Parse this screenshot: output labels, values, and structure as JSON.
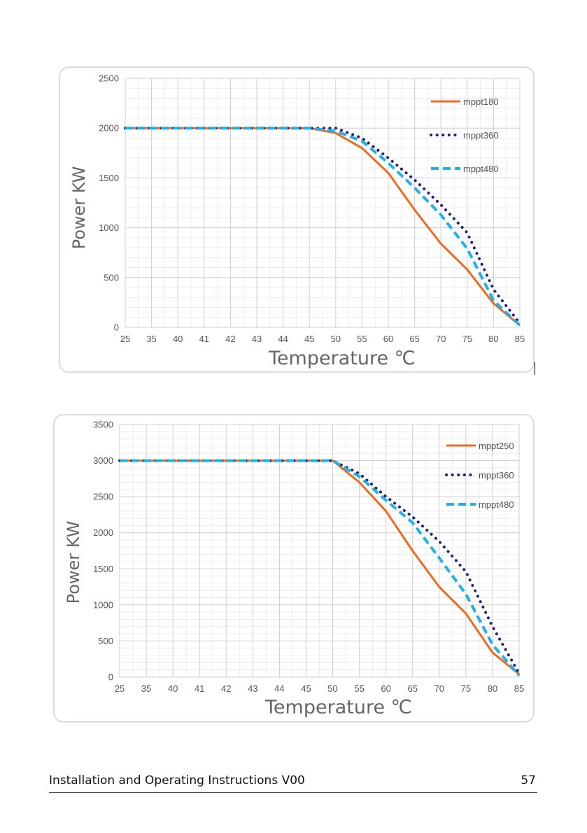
{
  "chart_data": [
    {
      "type": "line",
      "categories": [
        "25",
        "35",
        "40",
        "41",
        "42",
        "43",
        "44",
        "45",
        "50",
        "55",
        "60",
        "65",
        "70",
        "75",
        "80",
        "85"
      ],
      "ylim": [
        0,
        2500
      ],
      "yticks": [
        0,
        500,
        1000,
        1500,
        2000,
        2500
      ],
      "xlabel": "Temperature ℃",
      "ylabel": "Power  KW",
      "grid": true,
      "legend_position": "top-right",
      "series": [
        {
          "name": "mppt180",
          "style": "solid",
          "color": "#ee6a1c",
          "values": [
            2000,
            2000,
            2000,
            2000,
            2000,
            2000,
            2000,
            2000,
            1950,
            1800,
            1550,
            1180,
            840,
            580,
            240,
            20
          ]
        },
        {
          "name": "mppt360",
          "style": "dotted",
          "color": "#1f1f7a",
          "values": [
            2000,
            2000,
            2000,
            2000,
            2000,
            2000,
            2000,
            2000,
            2000,
            1900,
            1700,
            1480,
            1230,
            950,
            380,
            40
          ]
        },
        {
          "name": "mppt480",
          "style": "dashed",
          "color": "#22b0e8",
          "values": [
            2000,
            2000,
            2000,
            2000,
            2000,
            2000,
            2000,
            2000,
            1970,
            1870,
            1650,
            1400,
            1130,
            790,
            270,
            20
          ]
        }
      ]
    },
    {
      "type": "line",
      "categories": [
        "25",
        "35",
        "40",
        "41",
        "42",
        "43",
        "44",
        "45",
        "50",
        "55",
        "60",
        "65",
        "70",
        "75",
        "80",
        "85"
      ],
      "ylim": [
        0,
        3500
      ],
      "yticks": [
        0,
        500,
        1000,
        1500,
        2000,
        2500,
        3000,
        3500
      ],
      "xlabel": "Temperature ℃",
      "ylabel": "Power  KW",
      "grid": true,
      "legend_position": "top-right",
      "series": [
        {
          "name": "mppt250",
          "style": "solid",
          "color": "#ee6a1c",
          "values": [
            3000,
            3000,
            3000,
            3000,
            3000,
            3000,
            3000,
            3000,
            3000,
            2700,
            2300,
            1750,
            1250,
            880,
            340,
            40
          ]
        },
        {
          "name": "mppt360",
          "style": "dotted",
          "color": "#1f1f7a",
          "values": [
            3000,
            3000,
            3000,
            3000,
            3000,
            3000,
            3000,
            3000,
            3000,
            2820,
            2500,
            2220,
            1880,
            1460,
            700,
            50
          ]
        },
        {
          "name": "mppt480",
          "style": "dashed",
          "color": "#22b0e8",
          "values": [
            3000,
            3000,
            3000,
            3000,
            3000,
            3000,
            3000,
            3000,
            3000,
            2780,
            2450,
            2140,
            1650,
            1150,
            450,
            20
          ]
        }
      ]
    }
  ],
  "footer": {
    "title": "Installation and Operating Instructions V00",
    "page_number": "57"
  }
}
